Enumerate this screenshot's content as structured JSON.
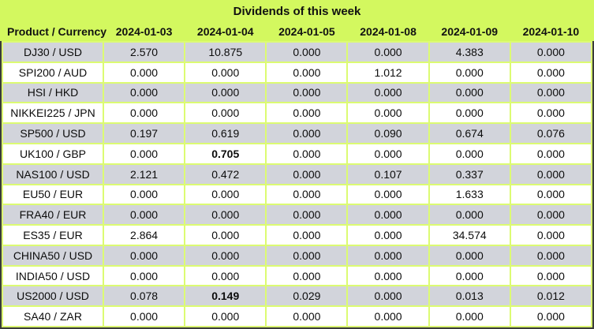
{
  "title": "Dividends of this week",
  "table": {
    "product_header": "Product / Currency",
    "date_headers": [
      "2024-01-03",
      "2024-01-04",
      "2024-01-05",
      "2024-01-08",
      "2024-01-09",
      "2024-01-10"
    ],
    "rows": [
      {
        "product": "DJ30 / USD",
        "values": [
          "2.570",
          "10.875",
          "0.000",
          "0.000",
          "4.383",
          "0.000"
        ],
        "bold": []
      },
      {
        "product": "SPI200 / AUD",
        "values": [
          "0.000",
          "0.000",
          "0.000",
          "1.012",
          "0.000",
          "0.000"
        ],
        "bold": []
      },
      {
        "product": "HSI / HKD",
        "values": [
          "0.000",
          "0.000",
          "0.000",
          "0.000",
          "0.000",
          "0.000"
        ],
        "bold": []
      },
      {
        "product": "NIKKEI225 / JPN",
        "values": [
          "0.000",
          "0.000",
          "0.000",
          "0.000",
          "0.000",
          "0.000"
        ],
        "bold": []
      },
      {
        "product": "SP500 / USD",
        "values": [
          "0.197",
          "0.619",
          "0.000",
          "0.090",
          "0.674",
          "0.076"
        ],
        "bold": []
      },
      {
        "product": "UK100 / GBP",
        "values": [
          "0.000",
          "0.705",
          "0.000",
          "0.000",
          "0.000",
          "0.000"
        ],
        "bold": [
          1
        ]
      },
      {
        "product": "NAS100 / USD",
        "values": [
          "2.121",
          "0.472",
          "0.000",
          "0.107",
          "0.337",
          "0.000"
        ],
        "bold": []
      },
      {
        "product": "EU50 / EUR",
        "values": [
          "0.000",
          "0.000",
          "0.000",
          "0.000",
          "1.633",
          "0.000"
        ],
        "bold": []
      },
      {
        "product": "FRA40 / EUR",
        "values": [
          "0.000",
          "0.000",
          "0.000",
          "0.000",
          "0.000",
          "0.000"
        ],
        "bold": []
      },
      {
        "product": "ES35 / EUR",
        "values": [
          "2.864",
          "0.000",
          "0.000",
          "0.000",
          "34.574",
          "0.000"
        ],
        "bold": []
      },
      {
        "product": "CHINA50 / USD",
        "values": [
          "0.000",
          "0.000",
          "0.000",
          "0.000",
          "0.000",
          "0.000"
        ],
        "bold": []
      },
      {
        "product": "INDIA50 / USD",
        "values": [
          "0.000",
          "0.000",
          "0.000",
          "0.000",
          "0.000",
          "0.000"
        ],
        "bold": []
      },
      {
        "product": "US2000 / USD",
        "values": [
          "0.078",
          "0.149",
          "0.029",
          "0.000",
          "0.013",
          "0.012"
        ],
        "bold": [
          1
        ]
      },
      {
        "product": "SA40 / ZAR",
        "values": [
          "0.000",
          "0.000",
          "0.000",
          "0.000",
          "0.000",
          "0.000"
        ],
        "bold": []
      }
    ]
  },
  "colors": {
    "background": "#d3f85f",
    "grid_gap": "#dcfb72",
    "row_grey": "#d2d4db",
    "row_white": "#ffffff",
    "outer_border": "#3a3a3a",
    "text": "#000000"
  }
}
